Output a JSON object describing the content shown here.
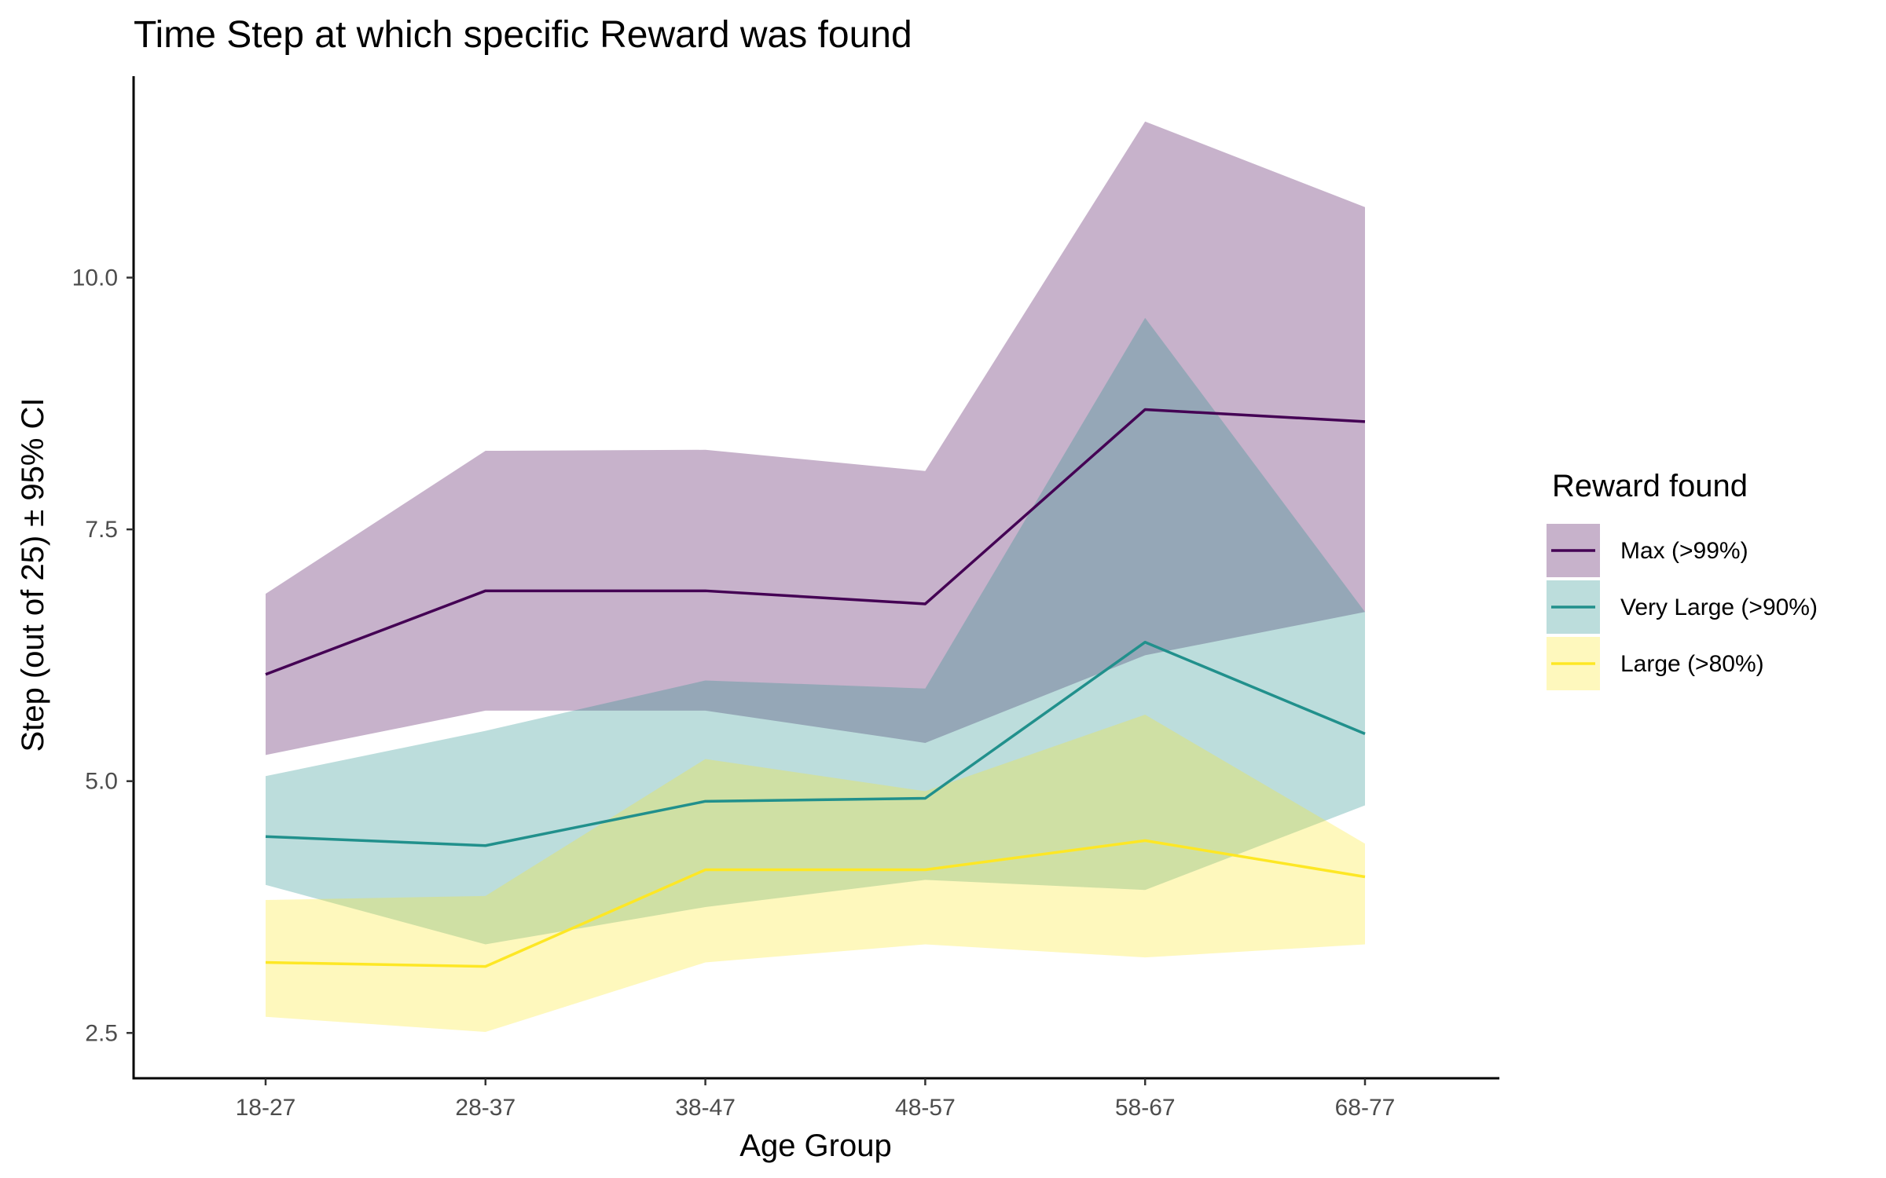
{
  "chart_data": {
    "type": "line",
    "title": "Time Step at which specific Reward was found",
    "xlabel": "Age Group",
    "ylabel": "Step (out of 25) ± 95% CI",
    "categories": [
      "18-27",
      "28-37",
      "38-47",
      "48-57",
      "58-67",
      "68-77"
    ],
    "ylim": [
      2.05,
      12.0
    ],
    "yticks": [
      2.5,
      5.0,
      7.5,
      10.0
    ],
    "ytick_labels": [
      "2.5",
      "5.0",
      "7.5",
      "10.0"
    ],
    "grid": false,
    "legend": {
      "title": "Reward found",
      "position": "right"
    },
    "series": [
      {
        "name": "Max (>99%)",
        "color": "#440154",
        "values": [
          6.06,
          6.89,
          6.89,
          6.76,
          8.69,
          8.57
        ],
        "ci_low": [
          5.26,
          5.7,
          5.7,
          5.38,
          6.25,
          6.68
        ],
        "ci_high": [
          6.86,
          8.28,
          8.29,
          8.08,
          11.55,
          10.7
        ]
      },
      {
        "name": "Very Large (>90%)",
        "color": "#21908C",
        "values": [
          4.45,
          4.36,
          4.8,
          4.83,
          6.38,
          5.47
        ],
        "ci_low": [
          3.97,
          3.38,
          3.75,
          4.02,
          3.92,
          4.76
        ],
        "ci_high": [
          5.05,
          5.5,
          6.0,
          5.92,
          9.6,
          6.68
        ]
      },
      {
        "name": "Large (>80%)",
        "color": "#FDE725",
        "values": [
          3.2,
          3.16,
          4.12,
          4.12,
          4.41,
          4.05
        ],
        "ci_low": [
          2.66,
          2.51,
          3.2,
          3.38,
          3.25,
          3.38
        ],
        "ci_high": [
          3.82,
          3.86,
          5.22,
          4.9,
          5.66,
          4.38
        ]
      }
    ]
  }
}
